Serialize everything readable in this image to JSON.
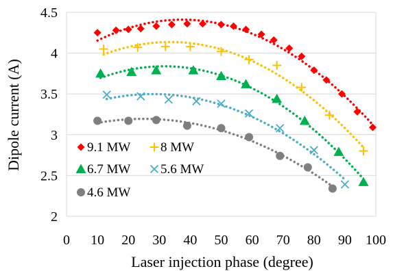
{
  "chart_data": {
    "type": "scatter",
    "xlabel": "Laser injection phase (degree)",
    "ylabel": "Dipole current (A)",
    "xlim": [
      0,
      100
    ],
    "ylim": [
      2,
      4.5
    ],
    "x_ticks": [
      "0",
      "10",
      "20",
      "30",
      "40",
      "50",
      "60",
      "70",
      "80",
      "90",
      "100"
    ],
    "y_ticks": [
      "2",
      "2.5",
      "3",
      "3.5",
      "4",
      "4.5"
    ],
    "grid": "horizontal",
    "legend_position": "bottom-left",
    "trendlines": "dotted polynomial",
    "series": [
      {
        "name": "9.1 MW",
        "marker": "diamond",
        "color": "#ff0000",
        "x": [
          10,
          16,
          20,
          24,
          29,
          34,
          39,
          44,
          50,
          54,
          58,
          63,
          67,
          72,
          76,
          80,
          84,
          89,
          94,
          99
        ],
        "y": [
          4.25,
          4.28,
          4.29,
          4.3,
          4.33,
          4.35,
          4.36,
          4.36,
          4.35,
          4.33,
          4.29,
          4.23,
          4.16,
          4.06,
          3.96,
          3.79,
          3.67,
          3.5,
          3.28,
          3.09
        ]
      },
      {
        "name": "8 MW",
        "marker": "plus",
        "color": "#ffc000",
        "x": [
          12,
          23,
          32,
          40,
          50,
          59,
          68,
          76,
          85,
          96
        ],
        "y": [
          4.05,
          4.07,
          4.08,
          4.08,
          4.02,
          3.92,
          3.85,
          3.58,
          3.24,
          2.8
        ]
      },
      {
        "name": "6.7 MW",
        "marker": "triangle",
        "color": "#00b050",
        "x": [
          11,
          21,
          29,
          41,
          50,
          58,
          68,
          77,
          88,
          96
        ],
        "y": [
          3.75,
          3.77,
          3.79,
          3.79,
          3.72,
          3.62,
          3.44,
          3.17,
          2.79,
          2.42
        ]
      },
      {
        "name": "5.6 MW",
        "marker": "x",
        "color": "#4bacc6",
        "x": [
          13,
          24,
          33,
          42,
          50,
          59,
          69,
          80,
          90
        ],
        "y": [
          3.49,
          3.47,
          3.43,
          3.41,
          3.38,
          3.26,
          3.08,
          2.81,
          2.39
        ]
      },
      {
        "name": "4.6 MW",
        "marker": "circle",
        "color": "#7f7f7f",
        "x": [
          10,
          20,
          29,
          39,
          50,
          59,
          69,
          78,
          86
        ],
        "y": [
          3.17,
          3.17,
          3.18,
          3.11,
          3.08,
          2.97,
          2.74,
          2.6,
          2.34
        ]
      }
    ]
  }
}
